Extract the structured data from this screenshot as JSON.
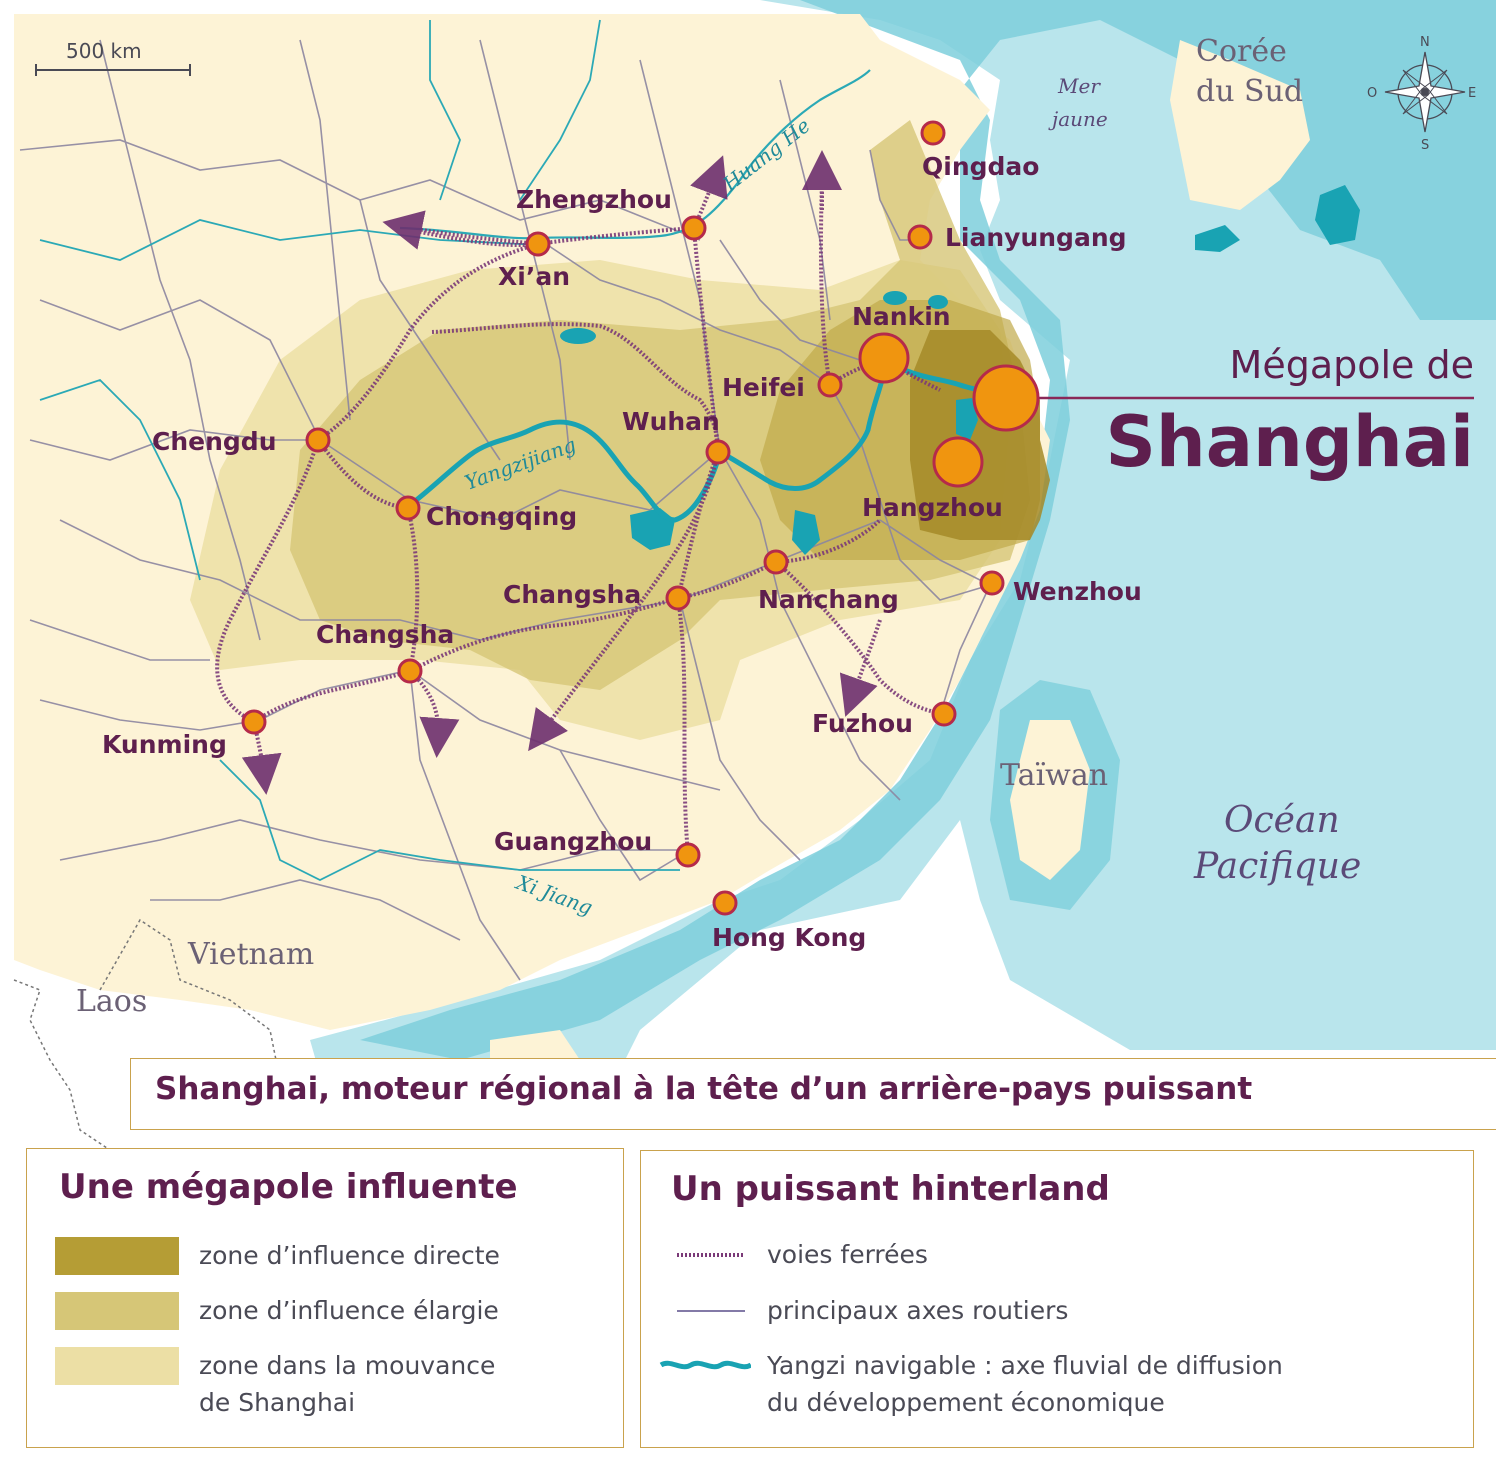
{
  "map": {
    "title": {
      "line1": "Mégapole de",
      "line2": "Shanghai"
    },
    "scale": "500 km",
    "compass": {
      "n": "N",
      "s": "S",
      "e": "E",
      "o": "O"
    },
    "cities": [
      {
        "name": "Qingdao"
      },
      {
        "name": "Lianyungang"
      },
      {
        "name": "Zhengzhou"
      },
      {
        "name": "Xi’an"
      },
      {
        "name": "Nankin"
      },
      {
        "name": "Heifei"
      },
      {
        "name": "Wuhan"
      },
      {
        "name": "Chengdu"
      },
      {
        "name": "Chongqing"
      },
      {
        "name": "Hangzhou"
      },
      {
        "name": "Wenzhou"
      },
      {
        "name": "Changsha"
      },
      {
        "name": "Nanchang"
      },
      {
        "name": "Changsha"
      },
      {
        "name": "Kunming"
      },
      {
        "name": "Fuzhou"
      },
      {
        "name": "Guangzhou"
      },
      {
        "name": "Hong Kong"
      }
    ],
    "countries": {
      "korea_line1": "Corée",
      "korea_line2": "du Sud",
      "taiwan": "Taïwan",
      "vietnam": "Vietnam",
      "laos": "Laos"
    },
    "seas": {
      "yellow_line1": "Mer",
      "yellow_line2": "jaune",
      "pacific_line1": "Océan",
      "pacific_line2": "Pacifique"
    },
    "rivers": {
      "huanghe": "Huang He",
      "yangzi": "Yangzijiang",
      "xijiang": "Xi Jiang"
    }
  },
  "banner": {
    "title": "Shanghai, moteur régional à la tête d’un arrière-pays puissant"
  },
  "legend": {
    "left": {
      "title": "Une mégapole influente",
      "items": [
        {
          "label": "zone d’influence directe",
          "color": "#b59d35"
        },
        {
          "label": "zone d’influence élargie",
          "color": "#d6c677"
        },
        {
          "label_line1": "zone dans la mouvance",
          "label_line2": "de Shanghai",
          "color": "#ecdfa5"
        }
      ]
    },
    "right": {
      "title": "Un puissant hinterland",
      "items": [
        {
          "label": "voies ferrées"
        },
        {
          "label": "principaux axes routiers"
        },
        {
          "label_line1": "Yangzi navigable : axe fluvial de diffusion",
          "label_line2": "du développement économique"
        }
      ]
    }
  },
  "colors": {
    "land": "#fdf3d6",
    "sea_light": "#b9e5ec",
    "sea_mid": "#7ecfdc",
    "accent": "#5e1f4e",
    "city": "#f0950f",
    "river": "#19a3b3",
    "road": "#8c86a0",
    "rail": "#7b3a78"
  }
}
